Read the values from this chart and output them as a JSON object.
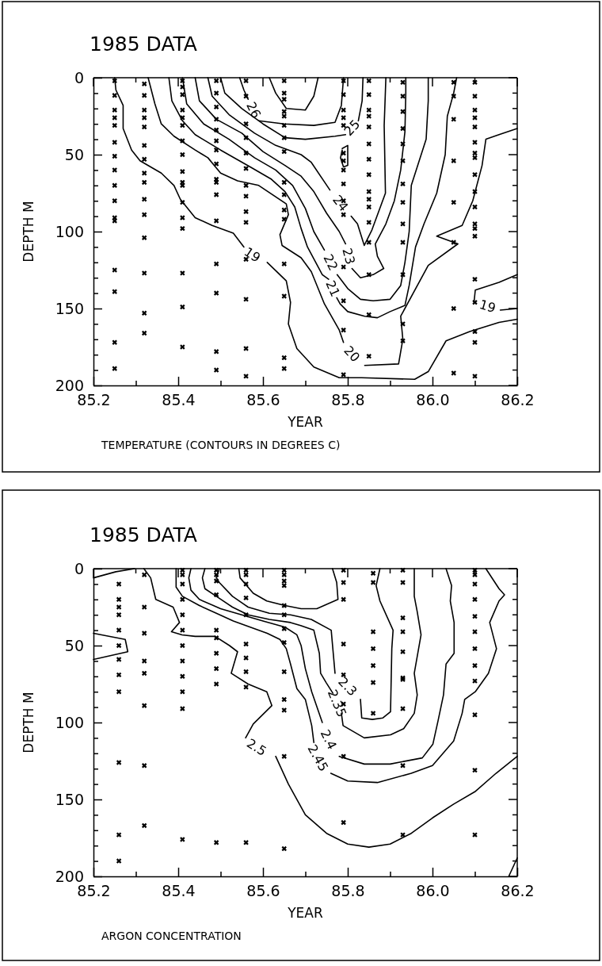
{
  "chart_data": [
    {
      "type": "line",
      "title": "1985 DATA",
      "xlabel": "YEAR",
      "ylabel": "DEPTH M",
      "annotations": [
        "TEMPERATURE (CONTOURS IN DEGREES C)"
      ],
      "xlim": [
        85.2,
        86.2
      ],
      "ylim": [
        200,
        0
      ],
      "xticks": [
        85.2,
        {
          "value": 85.3,
          "label": null
        },
        85.4,
        {
          "value": 85.5,
          "label": null
        },
        85.6,
        {
          "value": 85.7,
          "label": null
        },
        85.8,
        {
          "value": 85.9,
          "label": null
        },
        {
          "value": 86,
          "label": "86.0"
        },
        {
          "value": 86.1,
          "label": null
        },
        86.2
      ],
      "yticks": [
        0,
        {
          "value": 10,
          "label": null
        },
        {
          "value": 20,
          "label": null
        },
        {
          "value": 30,
          "label": null
        },
        {
          "value": 40,
          "label": null
        },
        50,
        {
          "value": 60,
          "label": null
        },
        {
          "value": 70,
          "label": null
        },
        {
          "value": 80,
          "label": null
        },
        {
          "value": 90,
          "label": null
        },
        100,
        {
          "value": 110,
          "label": null
        },
        {
          "value": 120,
          "label": null
        },
        {
          "value": 130,
          "label": null
        },
        {
          "value": 140,
          "label": null
        },
        150,
        {
          "value": 160,
          "label": null
        },
        {
          "value": 170,
          "label": null
        },
        {
          "value": 180,
          "label": null
        },
        {
          "value": 190,
          "label": null
        },
        200
      ],
      "series": [
        {
          "name": "19",
          "color": "#000000",
          "x": [
            85.25,
            85.253,
            85.27,
            85.27,
            85.29,
            85.31,
            85.36,
            85.39,
            85.405,
            85.44,
            85.48,
            85.53,
            85.555,
            85.575,
            85.61,
            85.655,
            85.665,
            85.66,
            85.68,
            85.72,
            85.78,
            85.833,
            85.958,
            85.99,
            86.032,
            86.088,
            86.157,
            86.2
          ],
          "values": [
            0,
            8,
            18,
            33,
            47,
            54,
            62,
            70,
            79,
            91,
            96,
            101,
            110,
            null,
            120,
            132,
            146,
            160,
            176,
            188,
            195,
            195,
            196,
            191,
            171,
            165,
            159,
            157
          ]
        },
        {
          "name": "19",
          "color": "#000000",
          "x": [
            86.2,
            86.157,
            86.101,
            86.098,
            86.13,
            86.16,
            86.2
          ],
          "values": [
            128,
            133,
            138,
            146,
            null,
            151,
            150
          ]
        },
        {
          "name": "20",
          "color": "#000000",
          "x": [
            85.329,
            85.345,
            85.36,
            85.39,
            85.44,
            85.47,
            85.5,
            85.54,
            85.59,
            85.655,
            85.66,
            85.64,
            85.645,
            85.69,
            85.714,
            85.745,
            85.78,
            85.79,
            85.81,
            85.84,
            85.92,
            85.93,
            85.925,
            85.99,
            86.06,
            86.01,
            86.07,
            86.095,
            86.117,
            86.126,
            86.157,
            86.2
          ],
          "values": [
            0,
            17,
            30,
            38,
            47,
            52,
            62,
            67,
            70,
            82,
            89,
            102,
            109,
            117,
            126,
            147,
            164,
            172,
            null,
            187,
            186,
            170,
            155,
            122,
            108,
            103,
            96,
            80,
            57,
            40,
            37,
            33
          ]
        },
        {
          "name": "21",
          "color": "#000000",
          "x": [
            85.378,
            85.385,
            85.41,
            85.44,
            85.5,
            85.57,
            85.62,
            85.652,
            85.675,
            85.69,
            85.705,
            85.74,
            85.755,
            85.765,
            85.774,
            85.782,
            85.8,
            85.84,
            85.87,
            85.9,
            85.935,
            85.945,
            85.96,
            85.98,
            86.01,
            86.03,
            86.035,
            86.05,
            86.057
          ],
          "values": [
            0,
            15,
            28,
            37,
            47,
            58,
            66,
            74,
            84,
            98,
            110,
            128,
            131,
            null,
            143,
            147,
            152,
            155,
            156,
            152,
            148,
            135,
            110,
            95,
            75,
            50,
            25,
            10,
            0
          ]
        },
        {
          "name": "22",
          "color": "#000000",
          "x": [
            85.41,
            85.42,
            85.46,
            85.52,
            85.58,
            85.63,
            85.67,
            85.7,
            85.72,
            85.745,
            85.76,
            85.775,
            85.8,
            85.83,
            85.86,
            85.9,
            85.925,
            85.935,
            85.945,
            85.95,
            85.985,
            85.99,
            85.99
          ],
          "values": [
            0,
            17,
            30,
            40,
            52,
            60,
            70,
            85,
            100,
            112,
            null,
            128,
            137,
            144,
            145,
            144,
            135,
            120,
            100,
            70,
            40,
            15,
            0
          ]
        },
        {
          "name": "23",
          "color": "#000000",
          "x": [
            85.44,
            85.45,
            85.49,
            85.55,
            85.6,
            85.652,
            85.69,
            85.72,
            85.75,
            85.78,
            85.795,
            85.8025,
            85.81,
            85.83,
            85.86,
            85.885,
            85.87,
            85.865,
            85.89,
            85.91,
            85.925,
            85.935,
            85.937,
            85.937
          ],
          "values": [
            0,
            15,
            27,
            36,
            48,
            57,
            64,
            74,
            88,
            100,
            108,
            null,
            124,
            130,
            128,
            124,
            116,
            108,
            95,
            80,
            60,
            35,
            10,
            0
          ]
        },
        {
          "name": "24",
          "color": "#000000",
          "x": [
            85.47,
            85.48,
            85.52,
            85.58,
            85.63,
            85.69,
            85.714,
            85.758,
            85.783,
            85.808,
            85.823,
            85.839,
            85.857,
            85.889,
            85.886,
            85.889,
            85.89
          ],
          "values": [
            0,
            12,
            24,
            36,
            44,
            50,
            55,
            73,
            null,
            90,
            95,
            109,
            99,
            75,
            31,
            8,
            0
          ]
        },
        {
          "name": "25",
          "color": "#000000",
          "x": [
            85.5,
            85.51,
            85.55,
            85.6,
            85.652,
            85.7,
            85.77,
            85.795,
            85.81,
            85.825,
            85.834,
            85.836
          ],
          "values": [
            0,
            10,
            20,
            30,
            39,
            40,
            38,
            37,
            null,
            28,
            15,
            0
          ]
        },
        {
          "name": "26",
          "color": "#000000",
          "x": [
            85.545,
            85.555,
            85.565,
            85.578,
            85.59,
            85.65,
            85.72,
            85.77,
            85.785,
            85.79
          ],
          "values": [
            0,
            8,
            14,
            null,
            28,
            30,
            31,
            29,
            18,
            0
          ]
        },
        {
          "color": "#000000",
          "x": [
            85.615,
            85.63,
            85.655,
            85.7,
            85.72,
            85.73
          ],
          "values": [
            0,
            10,
            20,
            21,
            12,
            0
          ]
        },
        {
          "color": "#000000",
          "x": [
            85.787,
            85.8,
            85.8,
            85.79,
            85.783,
            85.787
          ],
          "values": [
            46,
            44,
            57,
            58,
            52,
            47
          ]
        },
        {
          "type": "scatter",
          "marker": "cross",
          "color": "#000000",
          "x": [
            85.25,
            85.25,
            85.25,
            85.25,
            85.25,
            85.25,
            85.25,
            85.25,
            85.25,
            85.25,
            85.25,
            85.25,
            85.25,
            85.25,
            85.25,
            85.25
          ],
          "values": [
            2,
            11.5,
            21,
            26,
            31,
            42,
            51,
            60,
            70,
            80,
            91,
            93,
            125,
            139,
            172,
            189
          ]
        },
        {
          "type": "scatter",
          "marker": "cross",
          "color": "#000000",
          "x": [
            85.32,
            85.32,
            85.32,
            85.32,
            85.32,
            85.32,
            85.32,
            85.32,
            85.32,
            85.32,
            85.32,
            85.32,
            85.32,
            85.32,
            85.32
          ],
          "values": [
            4,
            11.5,
            21,
            26,
            32,
            44,
            53,
            62,
            68,
            79,
            89,
            104,
            127,
            153,
            166
          ]
        },
        {
          "type": "scatter",
          "marker": "cross",
          "color": "#000000",
          "x": [
            85.41,
            85.41,
            85.41,
            85.41,
            85.41,
            85.41,
            85.41,
            85.41,
            85.41,
            85.41,
            85.41,
            85.41,
            85.41,
            85.41,
            85.41,
            85.41,
            85.41
          ],
          "values": [
            2,
            6,
            11,
            21,
            26,
            31,
            41,
            50,
            61,
            68,
            70,
            81,
            91,
            98,
            127,
            149,
            175
          ]
        },
        {
          "type": "scatter",
          "marker": "cross",
          "color": "#000000",
          "x": [
            85.49,
            85.49,
            85.49,
            85.49,
            85.49,
            85.49,
            85.49,
            85.49,
            85.49,
            85.49,
            85.49,
            85.49,
            85.49,
            85.49,
            85.49,
            85.49
          ],
          "values": [
            2,
            10,
            19,
            27,
            34,
            41,
            47,
            56,
            66,
            68,
            76,
            93,
            121,
            140,
            178,
            190
          ]
        },
        {
          "type": "scatter",
          "marker": "cross",
          "color": "#000000",
          "x": [
            85.56,
            85.56,
            85.56,
            85.56,
            85.56,
            85.56,
            85.56,
            85.56,
            85.56,
            85.56,
            85.56,
            85.56,
            85.56,
            85.56
          ],
          "values": [
            2,
            12,
            30,
            39,
            49,
            59,
            70,
            77,
            87,
            94,
            118,
            144,
            176,
            194
          ]
        },
        {
          "type": "scatter",
          "marker": "cross",
          "color": "#000000",
          "x": [
            85.65,
            85.65,
            85.65,
            85.65,
            85.65,
            85.65,
            85.65,
            85.65,
            85.65,
            85.65,
            85.65,
            85.65,
            85.65,
            85.65,
            85.65,
            85.65
          ],
          "values": [
            2,
            10,
            14,
            22,
            25,
            31,
            39,
            48,
            68,
            76,
            86,
            92,
            121,
            142,
            182,
            189
          ]
        },
        {
          "type": "scatter",
          "marker": "cross",
          "color": "#000000",
          "x": [
            85.79,
            85.79,
            85.79,
            85.79,
            85.79,
            85.79,
            85.79,
            85.79,
            85.79,
            85.79,
            85.79,
            85.79,
            85.79,
            85.79,
            85.79
          ],
          "values": [
            2,
            11,
            21,
            26,
            31,
            49,
            54,
            60,
            69,
            80,
            89,
            123,
            145,
            164,
            193
          ]
        },
        {
          "type": "scatter",
          "marker": "cross",
          "color": "#000000",
          "x": [
            85.85,
            85.85,
            85.85,
            85.85,
            85.85,
            85.85,
            85.85,
            85.85,
            85.85,
            85.85,
            85.85,
            85.85,
            85.85,
            85.85,
            85.85,
            85.85
          ],
          "values": [
            2,
            11,
            21,
            25,
            32,
            43,
            53,
            63,
            74,
            79,
            84,
            94,
            107,
            128,
            154,
            181
          ]
        },
        {
          "type": "scatter",
          "marker": "cross",
          "color": "#000000",
          "x": [
            85.93,
            85.93,
            85.93,
            85.93,
            85.93,
            85.93,
            85.93,
            85.93,
            85.93,
            85.93,
            85.93,
            85.93,
            85.93
          ],
          "values": [
            3,
            12,
            22,
            33,
            43,
            54,
            69,
            81,
            95,
            107,
            128,
            160,
            171
          ]
        },
        {
          "type": "scatter",
          "marker": "cross",
          "color": "#000000",
          "x": [
            86.05,
            86.05,
            86.05,
            86.05,
            86.05,
            86.05,
            86.05,
            86.05
          ],
          "values": [
            3,
            12,
            27,
            54,
            81,
            107,
            150,
            192
          ]
        },
        {
          "type": "scatter",
          "marker": "cross",
          "color": "#000000",
          "x": [
            86.1,
            86.1,
            86.1,
            86.1,
            86.1,
            86.1,
            86.1,
            86.1,
            86.1,
            86.1,
            86.1,
            86.1,
            86.1,
            86.1,
            86.1,
            86.1,
            86.1,
            86.1,
            86.1
          ],
          "values": [
            3,
            12,
            21,
            26,
            32,
            42,
            49,
            52,
            63,
            74,
            84,
            95,
            98,
            103,
            131,
            146,
            165,
            172,
            194
          ]
        }
      ]
    },
    {
      "type": "line",
      "title": "1985 DATA",
      "xlabel": "YEAR",
      "ylabel": "DEPTH M",
      "annotations": [
        "ARGON CONCENTRATION"
      ],
      "xlim": [
        85.2,
        86.2
      ],
      "ylim": [
        200,
        0
      ],
      "xticks": [
        85.2,
        {
          "value": 85.3,
          "label": null
        },
        85.4,
        {
          "value": 85.5,
          "label": null
        },
        85.6,
        {
          "value": 85.7,
          "label": null
        },
        85.8,
        {
          "value": 85.9,
          "label": null
        },
        {
          "value": 86,
          "label": "86.0"
        },
        {
          "value": 86.1,
          "label": null
        },
        86.2
      ],
      "yticks": [
        0,
        {
          "value": 10,
          "label": null
        },
        {
          "value": 20,
          "label": null
        },
        {
          "value": 30,
          "label": null
        },
        {
          "value": 40,
          "label": null
        },
        50,
        {
          "value": 60,
          "label": null
        },
        {
          "value": 70,
          "label": null
        },
        {
          "value": 80,
          "label": null
        },
        {
          "value": 90,
          "label": null
        },
        100,
        {
          "value": 110,
          "label": null
        },
        {
          "value": 120,
          "label": null
        },
        {
          "value": 130,
          "label": null
        },
        {
          "value": 140,
          "label": null
        },
        150,
        {
          "value": 160,
          "label": null
        },
        {
          "value": 170,
          "label": null
        },
        {
          "value": 180,
          "label": null
        },
        {
          "value": 190,
          "label": null
        },
        200
      ],
      "series": [
        {
          "color": "#000000",
          "x": [
            85.2,
            85.253,
            85.297
          ],
          "values": [
            6,
            2,
            0
          ]
        },
        {
          "color": "#000000",
          "x": [
            85.2,
            85.275,
            85.281,
            85.2
          ],
          "values": [
            42,
            46,
            54,
            59
          ]
        },
        {
          "color": "#000000",
          "x": [
            86.18,
            86.2
          ],
          "values": [
            200,
            188
          ]
        },
        {
          "color": "#000000",
          "x": [
            85.543,
            85.546,
            85.577,
            85.609,
            85.652,
            85.69,
            85.727,
            85.777,
            85.774,
            85.764
          ],
          "values": [
            0,
            6,
            16,
            21,
            24,
            26,
            26,
            20,
            9,
            0
          ]
        },
        {
          "name": "2.3",
          "color": "#000000",
          "x": [
            85.497,
            85.49,
            85.497,
            85.528,
            85.565,
            85.615,
            85.665,
            85.714,
            85.761,
            85.77,
            85.8,
            85.83,
            85.833,
            85.858,
            85.883,
            85.901,
            85.904,
            85.907,
            85.876,
            85.867,
            85.876
          ],
          "values": [
            0,
            6,
            9,
            18,
            25,
            29,
            30,
            33,
            40,
            68,
            null,
            85,
            97,
            98,
            97,
            93,
            52,
            40,
            21,
            11,
            0
          ]
        },
        {
          "name": "2.35",
          "color": "#000000",
          "x": [
            85.463,
            85.457,
            85.463,
            85.49,
            85.528,
            85.565,
            85.615,
            85.665,
            85.689,
            85.72,
            85.733,
            85.736,
            85.749,
            85.765,
            85.775,
            85.785,
            85.789,
            85.839,
            85.901,
            85.932,
            85.957,
            85.964,
            85.957,
            85.973,
            85.964,
            85.957,
            85.957
          ],
          "values": [
            0,
            6,
            13,
            18,
            25,
            30,
            33,
            35,
            37,
            40,
            55,
            68,
            74,
            81,
            null,
            94,
            102,
            110,
            108,
            104,
            94,
            82,
            68,
            43,
            28,
            18,
            0
          ]
        },
        {
          "name": "2.4",
          "color": "#000000",
          "x": [
            85.43,
            85.425,
            85.43,
            85.45,
            85.5,
            85.55,
            85.6,
            85.652,
            85.68,
            85.69,
            85.7,
            85.715,
            85.74,
            85.755,
            85.78,
            85.839,
            85.9,
            85.976,
            86.001,
            86.013,
            86.026,
            86.032,
            86.051,
            86.051,
            86.042,
            86.045,
            86.032
          ],
          "values": [
            0,
            6,
            14,
            20,
            26,
            30,
            34,
            38,
            43,
            50,
            65,
            80,
            100,
            null,
            122,
            127,
            127,
            123,
            114,
            99,
            82,
            62,
            55,
            35,
            21,
            11,
            0
          ]
        },
        {
          "name": "2.45",
          "color": "#000000",
          "x": [
            85.395,
            85.395,
            85.41,
            85.45,
            85.49,
            85.53,
            85.57,
            85.61,
            85.64,
            85.655,
            85.665,
            85.68,
            85.7,
            85.715,
            85.72,
            85.73,
            85.76,
            85.8,
            85.87,
            85.95,
            86.0,
            86.05,
            86.07,
            86.076,
            86.101,
            86.132,
            86.151,
            86.135,
            86.157,
            86.17,
            86.157,
            86.126
          ],
          "values": [
            0,
            12,
            18,
            24,
            29,
            34,
            38,
            42,
            46,
            52,
            62,
            78,
            85,
            102,
            113,
            null,
            133,
            138,
            139,
            133,
            128,
            112,
            94,
            85,
            80,
            68,
            52,
            35,
            21,
            17,
            13,
            0
          ]
        },
        {
          "name": "2.5",
          "color": "#000000",
          "x": [
            85.319,
            85.335,
            85.347,
            85.388,
            85.403,
            85.384,
            85.409,
            85.44,
            85.487,
            85.521,
            85.54,
            85.525,
            85.565,
            85.609,
            85.621,
            85.577,
            85.559,
            85.585,
            85.63,
            85.66,
            85.7,
            85.75,
            85.8,
            85.85,
            85.9,
            85.95,
            86.0,
            86.05,
            86.1,
            86.15,
            86.2
          ],
          "values": [
            0,
            6,
            20,
            25,
            35,
            41,
            43,
            44,
            44,
            50,
            54,
            68,
            75,
            80,
            89,
            101,
            110,
            null,
            122,
            140,
            160,
            172,
            179,
            181,
            179,
            172,
            162,
            153,
            145,
            133,
            122
          ]
        },
        {
          "type": "scatter",
          "marker": "cross",
          "color": "#000000",
          "x": [
            85.26,
            85.26,
            85.26,
            85.26,
            85.26,
            85.26,
            85.26,
            85.26,
            85.26,
            85.26,
            85.26,
            85.26
          ],
          "values": [
            10,
            20,
            25,
            30,
            40,
            50,
            59,
            69,
            80,
            126,
            173,
            190
          ]
        },
        {
          "type": "scatter",
          "marker": "cross",
          "color": "#000000",
          "x": [
            85.32,
            85.32,
            85.32,
            85.32,
            85.32,
            85.32,
            85.32,
            85.32
          ],
          "values": [
            4,
            25,
            42,
            60,
            68,
            89,
            128,
            167
          ]
        },
        {
          "type": "scatter",
          "marker": "cross",
          "color": "#000000",
          "x": [
            85.41,
            85.41,
            85.41,
            85.41,
            85.41,
            85.41,
            85.41,
            85.41,
            85.41,
            85.41,
            85.41,
            85.41
          ],
          "values": [
            1,
            4,
            10,
            20,
            30,
            40,
            50,
            60,
            70,
            80,
            91,
            176
          ]
        },
        {
          "type": "scatter",
          "marker": "cross",
          "color": "#000000",
          "x": [
            85.49,
            85.49,
            85.49,
            85.49,
            85.49,
            85.49,
            85.49,
            85.49,
            85.49,
            85.49
          ],
          "values": [
            1,
            4,
            8,
            17,
            40,
            45,
            55,
            65,
            75,
            178
          ]
        },
        {
          "type": "scatter",
          "marker": "cross",
          "color": "#000000",
          "x": [
            85.56,
            85.56,
            85.56,
            85.56,
            85.56,
            85.56,
            85.56,
            85.56,
            85.56,
            85.56
          ],
          "values": [
            1,
            4,
            10,
            19,
            30,
            49,
            58,
            67,
            77,
            178
          ]
        },
        {
          "type": "scatter",
          "marker": "cross",
          "color": "#000000",
          "x": [
            85.65,
            85.65,
            85.65,
            85.65,
            85.65,
            85.65,
            85.65,
            85.65,
            85.65,
            85.65,
            85.65,
            85.65,
            85.65
          ],
          "values": [
            1,
            4,
            8,
            11,
            24,
            30,
            39,
            48,
            67,
            85,
            92,
            122,
            182
          ]
        },
        {
          "type": "scatter",
          "marker": "cross",
          "color": "#000000",
          "x": [
            85.79,
            85.79,
            85.79,
            85.79,
            85.79,
            85.79,
            85.79,
            85.79
          ],
          "values": [
            1,
            9,
            20,
            49,
            69,
            88,
            122,
            165
          ]
        },
        {
          "type": "scatter",
          "marker": "cross",
          "color": "#000000",
          "x": [
            85.86,
            85.86,
            85.86,
            85.86,
            85.86,
            85.86,
            85.86
          ],
          "values": [
            3,
            9,
            41,
            52,
            63,
            74,
            94
          ]
        },
        {
          "type": "scatter",
          "marker": "cross",
          "color": "#000000",
          "x": [
            85.93,
            85.93,
            85.93,
            85.93,
            85.93,
            85.93,
            85.93,
            85.93,
            85.93,
            85.93
          ],
          "values": [
            1,
            9,
            32,
            41,
            54,
            71,
            72,
            91,
            128,
            173
          ]
        },
        {
          "type": "scatter",
          "marker": "cross",
          "color": "#000000",
          "x": [
            86.1,
            86.1,
            86.1,
            86.1,
            86.1,
            86.1,
            86.1,
            86.1,
            86.1,
            86.1,
            86.1,
            86.1
          ],
          "values": [
            1,
            4,
            10,
            20,
            31,
            41,
            52,
            63,
            73,
            95,
            131,
            173
          ]
        }
      ]
    }
  ]
}
